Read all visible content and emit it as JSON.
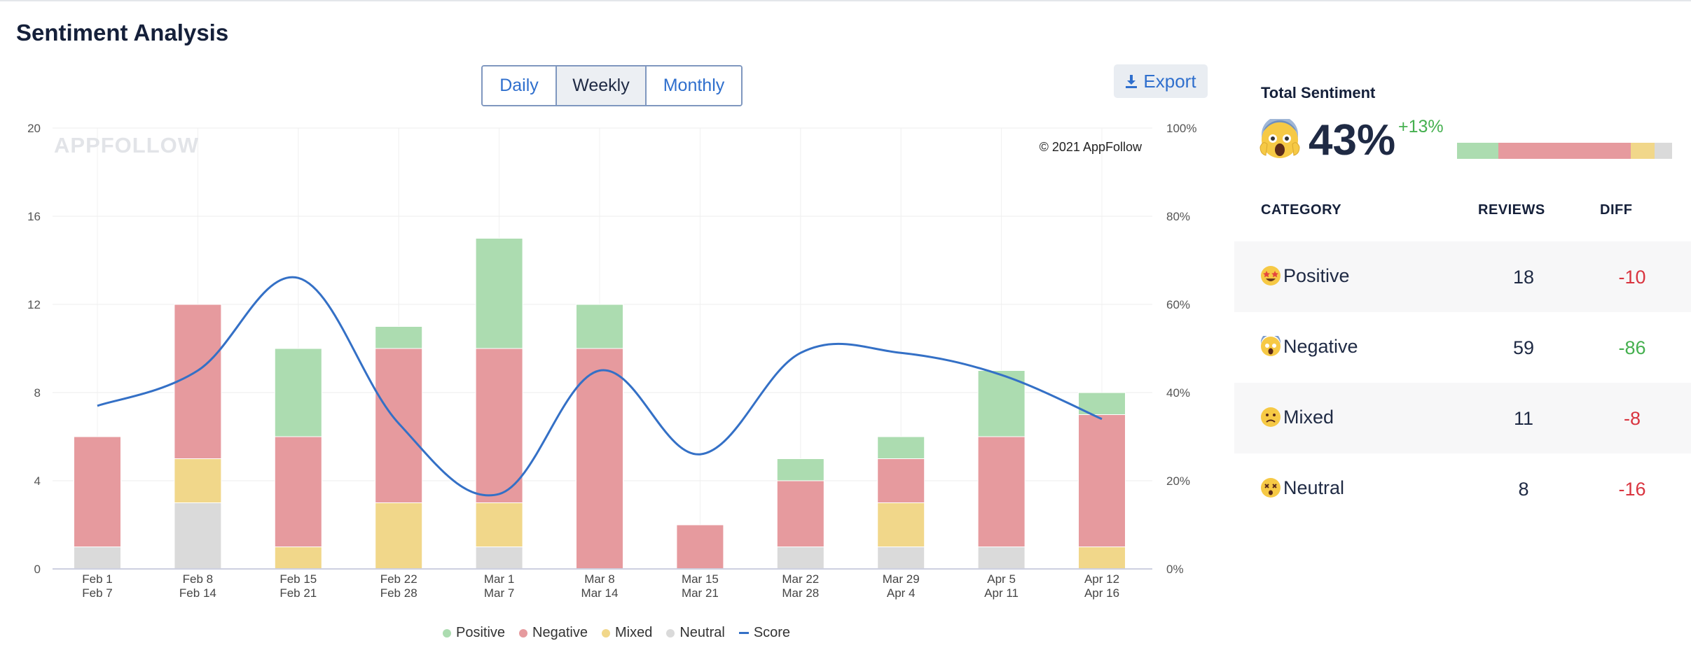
{
  "header": {
    "title": "Sentiment Analysis"
  },
  "toolbar": {
    "periods": [
      "Daily",
      "Weekly",
      "Monthly"
    ],
    "active_period": "Weekly",
    "export_label": "Export"
  },
  "chart_data": {
    "type": "bar",
    "stacked": true,
    "watermark": "APPFOLLOW",
    "copyright": "© 2021 AppFollow",
    "categories": [
      [
        "Feb 1",
        "Feb 7"
      ],
      [
        "Feb 8",
        "Feb 14"
      ],
      [
        "Feb 15",
        "Feb 21"
      ],
      [
        "Feb 22",
        "Feb 28"
      ],
      [
        "Mar 1",
        "Mar 7"
      ],
      [
        "Mar 8",
        "Mar 14"
      ],
      [
        "Mar 15",
        "Mar 21"
      ],
      [
        "Mar 22",
        "Mar 28"
      ],
      [
        "Mar 29",
        "Apr 4"
      ],
      [
        "Apr 5",
        "Apr 11"
      ],
      [
        "Apr 12",
        "Apr 16"
      ]
    ],
    "y_left": {
      "min": 0,
      "max": 20,
      "ticks": [
        0,
        4,
        8,
        12,
        16,
        20
      ]
    },
    "y_right": {
      "min": 0,
      "max": 100,
      "ticks": [
        "0%",
        "20%",
        "40%",
        "60%",
        "80%",
        "100%"
      ]
    },
    "grid": true,
    "legend_position": "bottom",
    "series": [
      {
        "name": "Neutral",
        "color": "#dadada",
        "values": [
          1,
          3,
          0,
          0,
          1,
          0,
          0,
          1,
          1,
          1,
          0
        ]
      },
      {
        "name": "Mixed",
        "color": "#f1d78a",
        "values": [
          0,
          2,
          1,
          3,
          2,
          0,
          0,
          0,
          2,
          0,
          1
        ]
      },
      {
        "name": "Negative",
        "color": "#e69a9e",
        "values": [
          5,
          7,
          5,
          7,
          7,
          10,
          2,
          3,
          2,
          5,
          6
        ]
      },
      {
        "name": "Positive",
        "color": "#acdcb0",
        "values": [
          0,
          0,
          4,
          1,
          5,
          2,
          0,
          1,
          1,
          3,
          1
        ]
      }
    ],
    "line_series": {
      "name": "Score",
      "color": "#3470c6",
      "axis": "right",
      "values": [
        37,
        45,
        66,
        33,
        17,
        45,
        26,
        49,
        49,
        44,
        34
      ]
    },
    "legend_order": [
      "Positive",
      "Negative",
      "Mixed",
      "Neutral",
      "Score"
    ]
  },
  "total_sentiment": {
    "label": "Total Sentiment",
    "emoji": "scream-emoji",
    "value": "43%",
    "diff": "+13%",
    "bar_fractions": [
      {
        "name": "Positive",
        "fraction": 0.19,
        "color": "#acdcb0"
      },
      {
        "name": "Negative",
        "fraction": 0.61,
        "color": "#e69a9e"
      },
      {
        "name": "Mixed",
        "fraction": 0.11,
        "color": "#f1d78a"
      },
      {
        "name": "Neutral",
        "fraction": 0.08,
        "color": "#dadada"
      }
    ]
  },
  "table": {
    "headers": [
      "CATEGORY",
      "REVIEWS",
      "DIFF"
    ],
    "rows": [
      {
        "emoji": "star-eyes-emoji",
        "category": "Positive",
        "reviews": "18",
        "diff": "-10",
        "diff_color": "#d9343f"
      },
      {
        "emoji": "scream-emoji",
        "category": "Negative",
        "reviews": "59",
        "diff": "-86",
        "diff_color": "#45b04f"
      },
      {
        "emoji": "confused-emoji",
        "category": "Mixed",
        "reviews": "11",
        "diff": "-8",
        "diff_color": "#d9343f"
      },
      {
        "emoji": "dizzy-face-emoji",
        "category": "Neutral",
        "reviews": "8",
        "diff": "-16",
        "diff_color": "#d9343f"
      }
    ]
  }
}
